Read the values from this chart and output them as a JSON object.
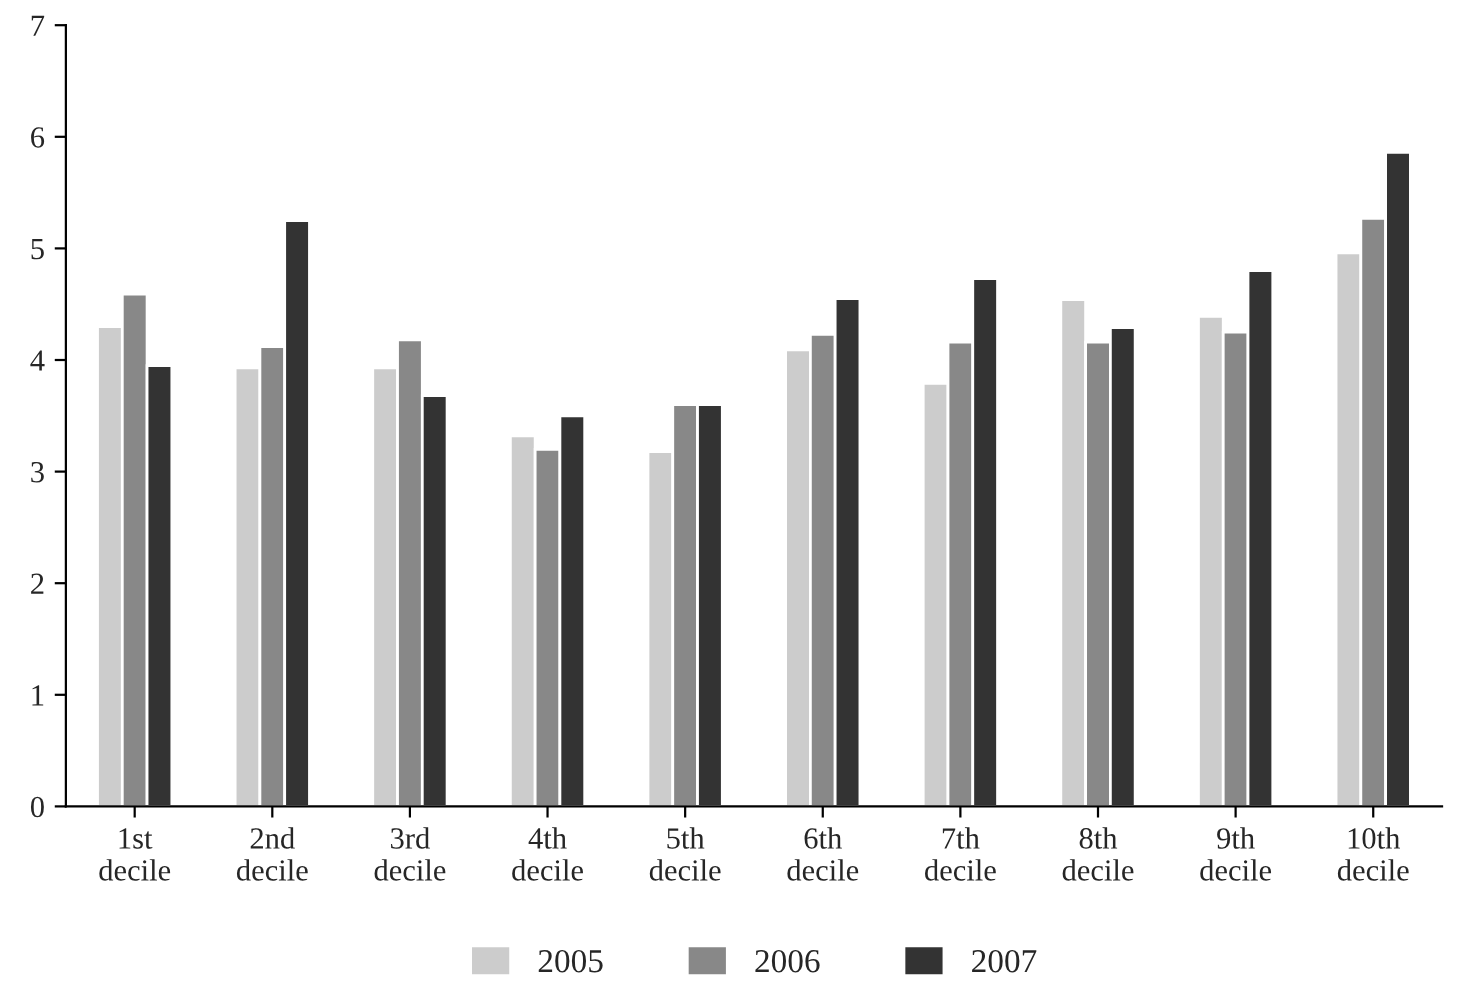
{
  "chart_data": {
    "type": "bar",
    "categories": [
      "1st\ndecile",
      "2nd\ndecile",
      "3rd\ndecile",
      "4th\ndecile",
      "5th\ndecile",
      "6th\ndecile",
      "7th\ndecile",
      "8th\ndecile",
      "9th\ndecile",
      "10th\ndecile"
    ],
    "series": [
      {
        "name": "2005",
        "color": "#cccccc",
        "values": [
          4.3,
          3.93,
          3.93,
          3.32,
          3.18,
          4.09,
          3.79,
          4.54,
          4.39,
          4.96
        ]
      },
      {
        "name": "2006",
        "color": "#888888",
        "values": [
          4.59,
          4.12,
          4.18,
          3.2,
          3.6,
          4.23,
          4.16,
          4.16,
          4.25,
          5.27
        ]
      },
      {
        "name": "2007",
        "color": "#333333",
        "values": [
          3.95,
          5.25,
          3.68,
          3.5,
          3.6,
          4.55,
          4.73,
          4.29,
          4.8,
          5.86
        ]
      }
    ],
    "ylim": [
      0,
      7
    ],
    "yticks": [
      0,
      1,
      2,
      3,
      4,
      5,
      6,
      7
    ],
    "grid": false,
    "legend": "bottom"
  }
}
